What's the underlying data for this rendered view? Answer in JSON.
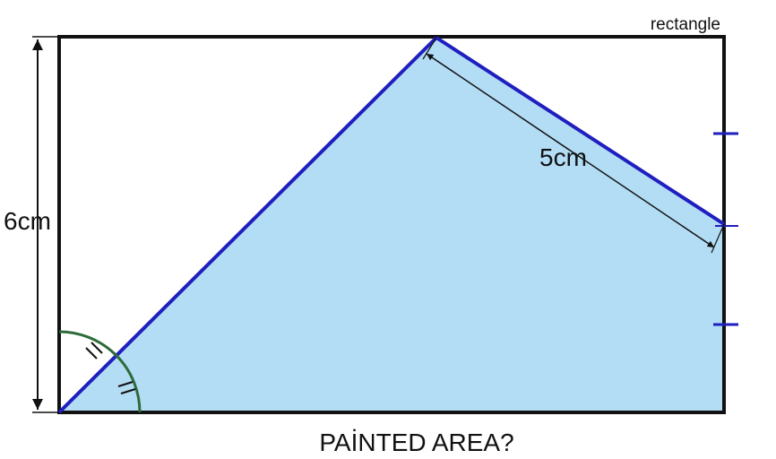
{
  "labels": {
    "shape_name": "rectangle",
    "height": "6cm",
    "segment": "5cm",
    "question": "PAİNTED AREA?"
  },
  "colors": {
    "outline": "#111111",
    "fill": "#b3dcf5",
    "edge": "#1f1fbf",
    "arc": "#2e6b3a",
    "dimension": "#111111"
  }
}
